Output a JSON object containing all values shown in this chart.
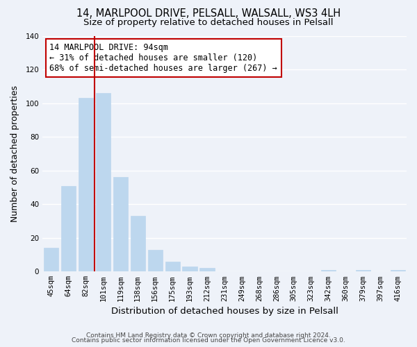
{
  "title": "14, MARLPOOL DRIVE, PELSALL, WALSALL, WS3 4LH",
  "subtitle": "Size of property relative to detached houses in Pelsall",
  "xlabel": "Distribution of detached houses by size in Pelsall",
  "ylabel": "Number of detached properties",
  "categories": [
    "45sqm",
    "64sqm",
    "82sqm",
    "101sqm",
    "119sqm",
    "138sqm",
    "156sqm",
    "175sqm",
    "193sqm",
    "212sqm",
    "231sqm",
    "249sqm",
    "268sqm",
    "286sqm",
    "305sqm",
    "323sqm",
    "342sqm",
    "360sqm",
    "379sqm",
    "397sqm",
    "416sqm"
  ],
  "values": [
    14,
    51,
    103,
    106,
    56,
    33,
    13,
    6,
    3,
    2,
    0,
    0,
    0,
    0,
    0,
    0,
    1,
    0,
    1,
    0,
    1
  ],
  "bar_color": "#bdd7ee",
  "bar_edge_color": "#bdd7ee",
  "reference_line_color": "#c00000",
  "annotation_box_text": "14 MARLPOOL DRIVE: 94sqm\n← 31% of detached houses are smaller (120)\n68% of semi-detached houses are larger (267) →",
  "annotation_box_facecolor": "white",
  "annotation_box_edgecolor": "#c00000",
  "ylim": [
    0,
    140
  ],
  "yticks": [
    0,
    20,
    40,
    60,
    80,
    100,
    120,
    140
  ],
  "footer_line1": "Contains HM Land Registry data © Crown copyright and database right 2024.",
  "footer_line2": "Contains public sector information licensed under the Open Government Licence v3.0.",
  "background_color": "#eef2f9",
  "plot_background_color": "#eef2f9",
  "title_fontsize": 10.5,
  "subtitle_fontsize": 9.5,
  "xlabel_fontsize": 9.5,
  "ylabel_fontsize": 9,
  "tick_fontsize": 7.5,
  "annotation_fontsize": 8.5,
  "footer_fontsize": 6.5
}
